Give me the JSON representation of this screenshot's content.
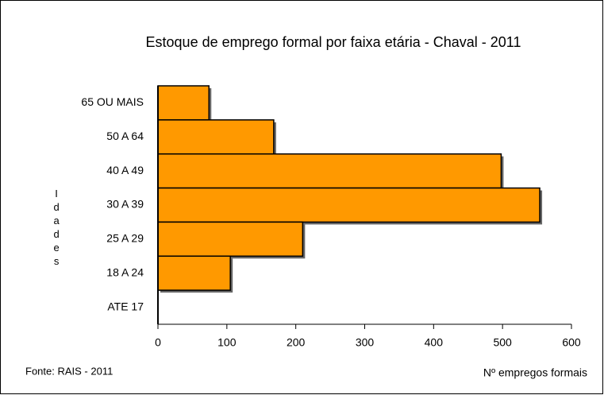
{
  "chart_data": {
    "type": "barh",
    "title": "Estoque de emprego formal por faixa etária - Chaval - 2011",
    "categories": [
      "65 OU MAIS",
      "50 A 64",
      "40 A 49",
      "30 A 39",
      "25 A 29",
      "18 A 24",
      "ATE 17"
    ],
    "values": [
      74,
      168,
      498,
      554,
      210,
      105,
      0
    ],
    "color": "#ff9900",
    "xlim": [
      0,
      600
    ],
    "xticks": [
      0,
      100,
      200,
      300,
      400,
      500,
      600
    ],
    "ylabel": "Idades",
    "xlabel": "Nº empregos formais",
    "source": "Fonte: RAIS - 2011"
  }
}
